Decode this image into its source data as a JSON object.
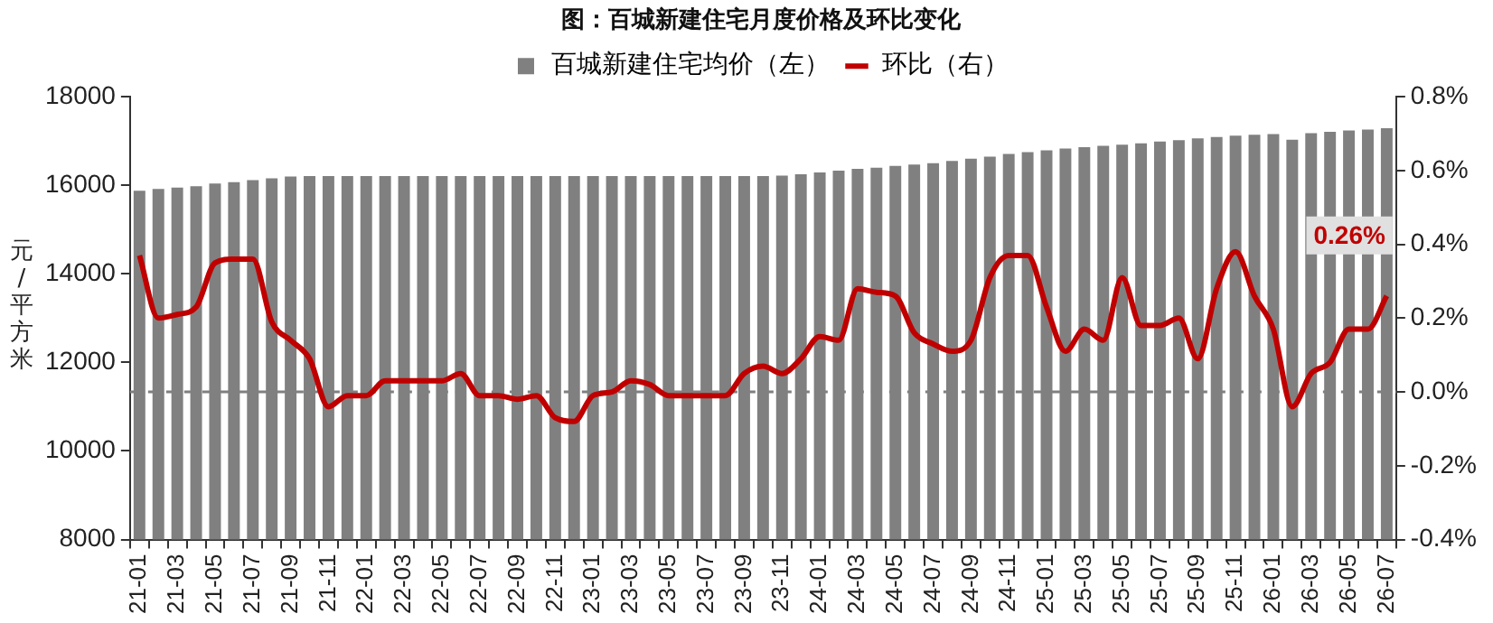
{
  "chart_data": {
    "type": "bar",
    "title": "图：百城新建住宅月度价格及环比变化",
    "ylabel": "元/平方米",
    "categories": [
      "21-01",
      null,
      "21-03",
      null,
      "21-05",
      null,
      "21-07",
      null,
      "21-09",
      null,
      "21-11",
      null,
      "22-01",
      null,
      "22-03",
      null,
      "22-05",
      null,
      "22-07",
      null,
      "22-09",
      null,
      "22-11",
      null,
      "23-01",
      null,
      "23-03",
      null,
      "23-05",
      null,
      "23-07",
      null,
      "23-09",
      null,
      "23-11",
      null,
      "24-01",
      null,
      "24-03",
      null,
      "24-05",
      null,
      "24-07",
      null,
      "24-09",
      null,
      "24-11",
      null,
      "25-01",
      null,
      "25-03",
      null,
      "25-05",
      null,
      "25-07",
      null,
      "25-09",
      null,
      "25-11",
      null,
      "26-01",
      null,
      "26-03",
      null,
      "26-05",
      null,
      "26-07"
    ],
    "series": [
      {
        "name": "百城新建住宅均价（左）",
        "color": "#808080",
        "values": [
          15880,
          15920,
          15950,
          15980,
          16040,
          16070,
          16120,
          16160,
          16200,
          16210,
          16210,
          16210,
          16210,
          16210,
          16210,
          16210,
          16210,
          16210,
          16210,
          16210,
          16210,
          16210,
          16210,
          16210,
          16210,
          16210,
          16210,
          16210,
          16210,
          16210,
          16210,
          16210,
          16210,
          16210,
          16220,
          16250,
          16290,
          16330,
          16370,
          16400,
          16440,
          16470,
          16500,
          16550,
          16600,
          16650,
          16710,
          16750,
          16790,
          16830,
          16860,
          16890,
          16920,
          16950,
          16990,
          17020,
          17060,
          17090,
          17120,
          17140,
          17160,
          17030,
          17180,
          17210,
          17240,
          17260,
          17290
        ]
      },
      {
        "name": "环比（右）",
        "type": "line",
        "axis": "y2",
        "color": "#c00000",
        "values": [
          0.37,
          0.2,
          0.21,
          0.23,
          0.35,
          0.36,
          0.36,
          0.19,
          0.14,
          0.09,
          -0.04,
          -0.01,
          -0.01,
          0.03,
          0.03,
          0.03,
          0.03,
          0.05,
          -0.01,
          -0.01,
          -0.02,
          -0.01,
          -0.07,
          -0.08,
          -0.01,
          0.0,
          0.03,
          0.02,
          -0.01,
          -0.01,
          -0.01,
          -0.01,
          0.05,
          0.07,
          0.05,
          0.09,
          0.15,
          0.14,
          0.28,
          0.27,
          0.26,
          0.16,
          0.13,
          0.11,
          0.14,
          0.31,
          0.37,
          0.37,
          0.23,
          0.11,
          0.17,
          0.14,
          0.31,
          0.18,
          0.18,
          0.2,
          0.09,
          0.28,
          0.38,
          0.26,
          0.17,
          -0.04,
          0.05,
          0.08,
          0.17,
          0.17,
          0.26
        ],
        "value_labels": [
          null,
          null,
          null,
          null,
          null,
          null,
          null,
          null,
          null,
          null,
          null,
          null,
          null,
          null,
          null,
          null,
          null,
          null,
          null,
          null,
          null,
          null,
          null,
          null,
          null,
          null,
          null,
          null,
          null,
          null,
          null,
          null,
          null,
          null,
          null,
          null,
          null,
          null,
          null,
          null,
          null,
          null,
          null,
          null,
          null,
          null,
          null,
          null,
          null,
          null,
          null,
          null,
          null,
          null,
          null,
          null,
          null,
          null,
          null,
          null,
          null,
          null,
          null,
          null,
          null,
          null,
          "0.26%"
        ]
      }
    ],
    "ylim": [
      8000,
      18000
    ],
    "yticks": [
      8000,
      10000,
      12000,
      14000,
      16000,
      18000
    ],
    "y2lim": [
      -0.4,
      0.8
    ],
    "y2ticks": [
      {
        "value": -0.4,
        "label": "-0.4%"
      },
      {
        "value": -0.2,
        "label": "-0.2%"
      },
      {
        "value": 0,
        "label": "0.0%"
      },
      {
        "value": 0.2,
        "label": "0.2%"
      },
      {
        "value": 0.4,
        "label": "0.4%"
      },
      {
        "value": 0.6,
        "label": "0.6%"
      },
      {
        "value": 0.8,
        "label": "0.8%"
      }
    ],
    "ref_lines": [
      {
        "axis": "y2",
        "value": 0,
        "color": "#808080",
        "line_style": "dashed"
      }
    ],
    "grid": false,
    "legend": "top",
    "marker": "none",
    "line_style": "solid"
  }
}
